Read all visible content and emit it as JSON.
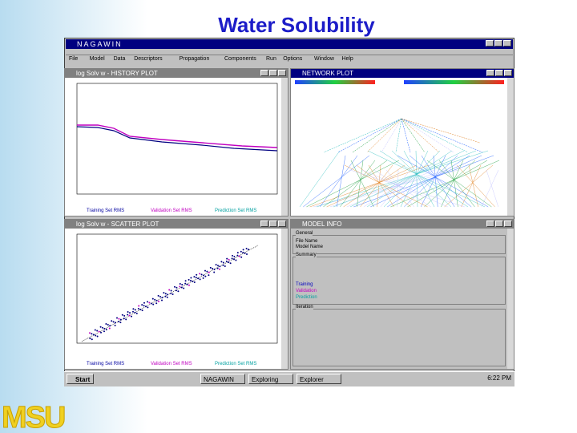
{
  "title": "Water Solubility",
  "logo": "MSU",
  "app": {
    "title": "NAGAWIN",
    "menu": [
      "File",
      "Model",
      "Data",
      "Descriptors",
      "Propagation",
      "Components",
      "Run",
      "Options",
      "Window",
      "Help"
    ]
  },
  "windows": [
    {
      "title": "log Solv w - HISTORY PLOT"
    },
    {
      "title": "NETWORK PLOT"
    },
    {
      "title": "log Solv w - SCATTER PLOT"
    },
    {
      "title": "MODEL INFO"
    }
  ],
  "history_legend": [
    "Training Set RMS",
    "Validation Set RMS",
    "Prediction Set RMS"
  ],
  "scatter_legend": [
    "Training Set RMS",
    "Validation Set RMS",
    "Prediction Set RMS"
  ],
  "model_info": {
    "sections": [
      "General",
      "Summary",
      "Iteration"
    ],
    "rows": [
      "File Name",
      "Model Name",
      "Training",
      "Validation",
      "Prediction"
    ]
  },
  "taskbar": {
    "start": "Start",
    "items": [
      "NAGAWIN",
      "Exploring",
      "Explorer"
    ],
    "clock": "6:22 PM"
  }
}
